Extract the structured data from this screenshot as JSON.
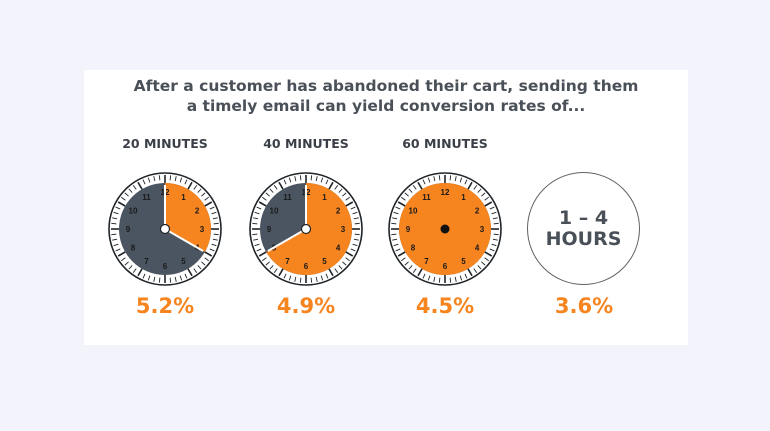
{
  "headline": {
    "line1": "After a customer has abandoned their cart, sending them",
    "line2": "a timely email can yield conversion rates of..."
  },
  "colors": {
    "orange": "#f6841f",
    "slate": "#4b5561",
    "text": "#4a5058",
    "background": "#f3f3fc"
  },
  "chart_data": {
    "type": "bar",
    "title": "After a customer has abandoned their cart, sending them a timely email can yield conversion rates of...",
    "categories": [
      "20 MINUTES",
      "40 MINUTES",
      "60 MINUTES",
      "1 – 4 HOURS"
    ],
    "values": [
      5.2,
      4.9,
      4.5,
      3.6
    ],
    "value_labels": [
      "5.2%",
      "4.9%",
      "4.5%",
      "3.6%"
    ],
    "clock_elapsed_minutes": [
      20,
      40,
      60,
      null
    ]
  },
  "clocks": [
    {
      "label": "20 MINUTES",
      "minutes": 20,
      "rate": "5.2%"
    },
    {
      "label": "40 MINUTES",
      "minutes": 40,
      "rate": "4.9%"
    },
    {
      "label": "60 MINUTES",
      "minutes": 60,
      "rate": "4.5%"
    }
  ],
  "hours": {
    "range": "1 – 4",
    "unit": "HOURS",
    "rate": "3.6%"
  },
  "clock_numbers": [
    "12",
    "1",
    "2",
    "3",
    "4",
    "5",
    "6",
    "7",
    "8",
    "9",
    "10",
    "11"
  ]
}
